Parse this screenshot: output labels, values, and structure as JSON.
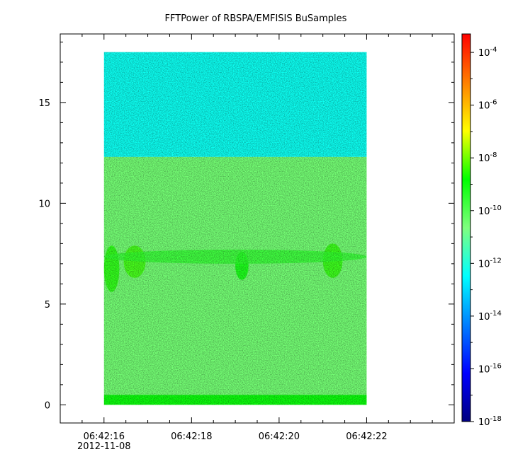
{
  "chart_data": {
    "type": "heatmap",
    "title": "FFTPower of RBSPA/EMFISIS  BuSamples",
    "xlabel": "",
    "ylabel": "",
    "x_ticks": [
      "06:42:16",
      "06:42:18",
      "06:42:20",
      "06:42:22"
    ],
    "x_tick_values": [
      16,
      18,
      20,
      22
    ],
    "x_sublabel": "2012-11-08",
    "xlim": [
      15.0,
      24.0
    ],
    "y_ticks": [
      "0",
      "5",
      "10",
      "15"
    ],
    "y_tick_values": [
      0,
      5,
      10,
      15
    ],
    "ylim": [
      -0.9,
      18.4
    ],
    "data_extent": {
      "x": [
        16.0,
        22.0
      ],
      "y": [
        0.0,
        17.5
      ]
    },
    "colorbar": {
      "scale": "log",
      "range_exponent": [
        -18,
        -3.3
      ],
      "tick_exponents": [
        -4,
        -6,
        -8,
        -10,
        -12,
        -14,
        -16,
        -18
      ],
      "tick_labels": [
        "10-4",
        "10-6",
        "10-8",
        "10-10",
        "10-12",
        "10-14",
        "10-16",
        "10-18"
      ],
      "colormap": [
        "#00007f",
        "#0000ff",
        "#007fff",
        "#00ffff",
        "#7fff7f",
        "#00ff00",
        "#ffff00",
        "#ff7f00",
        "#ff0000"
      ]
    },
    "bands": [
      {
        "y_from": 0.0,
        "y_to": 0.5,
        "level_exponent": -9.0,
        "label": "bottom edge band"
      },
      {
        "y_from": 0.5,
        "y_to": 12.3,
        "level_exponent": -10.5,
        "label": "main band"
      },
      {
        "y_from": 12.3,
        "y_to": 17.5,
        "level_exponent": -12.3,
        "label": "upper band"
      }
    ],
    "enhancements": [
      {
        "x_from": 16.0,
        "x_to": 16.35,
        "y_from": 5.6,
        "y_to": 7.9,
        "level_exponent": -8.6
      },
      {
        "x_from": 16.45,
        "x_to": 16.95,
        "y_from": 6.3,
        "y_to": 7.9,
        "level_exponent": -8.4
      },
      {
        "x_from": 19.0,
        "x_to": 19.3,
        "y_from": 6.2,
        "y_to": 7.6,
        "level_exponent": -8.8
      },
      {
        "x_from": 21.0,
        "x_to": 21.45,
        "y_from": 6.3,
        "y_to": 8.0,
        "level_exponent": -8.5
      },
      {
        "x_from": 16.0,
        "x_to": 22.0,
        "y_from": 7.0,
        "y_to": 7.7,
        "level_exponent": -9.5
      }
    ]
  }
}
